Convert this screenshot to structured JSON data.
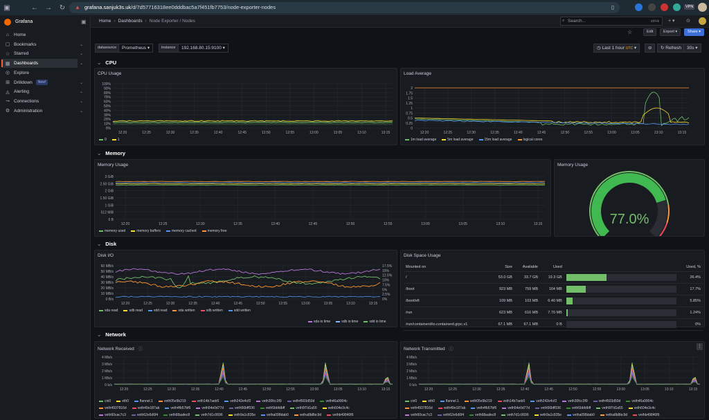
{
  "browser": {
    "url_domain": "grafana.sanjuk3s.uk",
    "url_path": "/d/7d57716318ee0dddbac5a7f451fb7753/node-exporter-nodes",
    "vpn": "VPN"
  },
  "sidebar": {
    "brand": "Grafana",
    "items": [
      {
        "label": "Home",
        "icon": "home-icon",
        "chevron": false
      },
      {
        "label": "Bookmarks",
        "icon": "bookmark-icon",
        "chevron": true
      },
      {
        "label": "Starred",
        "icon": "star-icon",
        "chevron": true
      },
      {
        "label": "Dashboards",
        "icon": "grid-icon",
        "chevron": true,
        "active": true
      },
      {
        "label": "Explore",
        "icon": "compass-icon",
        "chevron": false
      },
      {
        "label": "Drilldown",
        "icon": "drilldown-icon",
        "chevron": true,
        "badge": "New!"
      },
      {
        "label": "Alerting",
        "icon": "bell-icon",
        "chevron": true
      },
      {
        "label": "Connections",
        "icon": "plug-icon",
        "chevron": true
      },
      {
        "label": "Administration",
        "icon": "gear-icon",
        "chevron": true
      }
    ]
  },
  "breadcrumb": {
    "home": "Home",
    "dashboards": "Dashboards",
    "current": "Node Exporter / Nodes"
  },
  "search": {
    "placeholder": "Search...",
    "shortcut": "ctrl+k"
  },
  "toolbar": {
    "edit": "Edit",
    "export": "Export",
    "share": "Share"
  },
  "variables": {
    "datasource_label": "datasource",
    "datasource_value": "Prometheus",
    "instance_label": "instance",
    "instance_value": "192.168.80.15:9100"
  },
  "time": {
    "range": "Last 1 hour",
    "tz": "UTC",
    "refresh": "Refresh",
    "interval": "30s"
  },
  "rows": {
    "cpu": "CPU",
    "memory": "Memory",
    "disk": "Disk",
    "network": "Network"
  },
  "panels": {
    "cpu_usage": "CPU Usage",
    "load_average": "Load Average",
    "memory_usage": "Memory Usage",
    "memory_gauge": "Memory Usage",
    "disk_io": "Disk I/O",
    "disk_space": "Disk Space Usage",
    "net_rx": "Network Received",
    "net_tx": "Network Transmitted"
  },
  "time_ticks": [
    "12:20",
    "12:25",
    "12:30",
    "12:35",
    "12:40",
    "12:45",
    "12:50",
    "12:55",
    "13:00",
    "13:05",
    "13:10",
    "13:15"
  ],
  "cpu_legend": [
    {
      "name": "0",
      "color": "#73bf69"
    },
    {
      "name": "1",
      "color": "#fade2a"
    }
  ],
  "load_legend": [
    {
      "name": "1m load average",
      "color": "#73bf69"
    },
    {
      "name": "5m load average",
      "color": "#fade2a"
    },
    {
      "name": "15m load average",
      "color": "#5794f2"
    },
    {
      "name": "logical cores",
      "color": "#ff9830"
    }
  ],
  "mem_legend": [
    {
      "name": "memory used",
      "color": "#73bf69"
    },
    {
      "name": "memory buffers",
      "color": "#fade2a"
    },
    {
      "name": "memory cached",
      "color": "#5794f2"
    },
    {
      "name": "memory free",
      "color": "#ff9830"
    }
  ],
  "disk_legend": [
    {
      "name": "sda read",
      "color": "#73bf69"
    },
    {
      "name": "sdb read",
      "color": "#fade2a"
    },
    {
      "name": "sdd read",
      "color": "#5794f2"
    },
    {
      "name": "sda written",
      "color": "#ff9830"
    },
    {
      "name": "sdb written",
      "color": "#f2495c"
    },
    {
      "name": "sdd written",
      "color": "#5794f2"
    }
  ],
  "disk_legend2": [
    {
      "name": "sda io time",
      "color": "#b877d9"
    },
    {
      "name": "sdb io time",
      "color": "#8ab8ff"
    },
    {
      "name": "sdd io time",
      "color": "#73bf69"
    }
  ],
  "cpu_y": [
    "100%",
    "90%",
    "80%",
    "70%",
    "60%",
    "50%",
    "40%",
    "30%",
    "20%",
    "10%",
    "0%"
  ],
  "load_y": [
    "2",
    "1.75",
    "1.5",
    "1.25",
    "1",
    "0.75",
    "0.5",
    "0.25",
    "0"
  ],
  "mem_y": [
    "3 GiB",
    "2.50 GiB",
    "2 GiB",
    "1.50 GiB",
    "1 GiB",
    "512 MiB",
    "0 B"
  ],
  "disk_y": [
    "60 MB/s",
    "50 MB/s",
    "40 MB/s",
    "30 MB/s",
    "20 MB/s",
    "10 MB/s",
    "0 B/s"
  ],
  "disk_y2": [
    "17.5%",
    "15%",
    "12.5%",
    "10%",
    "7.5%",
    "5%",
    "2.5%",
    "0%"
  ],
  "net_y": [
    "4 Mb/s",
    "3 Mb/s",
    "2 Mb/s",
    "1 Mb/s",
    "0 b/s"
  ],
  "gauge": {
    "value": 77.0,
    "text": "77.0%"
  },
  "disk_table": {
    "headers": [
      "Mounted on",
      "Size",
      "Available",
      "Used",
      "",
      "Used, %"
    ],
    "rows": [
      {
        "mount": "/",
        "size": "53.0 GB",
        "avail": "33.7 GB",
        "used": "19.3 GB",
        "pct": "36.4%",
        "frac": 0.364
      },
      {
        "mount": "/boot",
        "size": "923 MB",
        "avail": "759 MB",
        "used": "164 MB",
        "pct": "17.7%",
        "frac": 0.177
      },
      {
        "mount": "/boot/efi",
        "size": "109 MB",
        "avail": "103 MB",
        "used": "6.40 MB",
        "pct": "5.85%",
        "frac": 0.0585
      },
      {
        "mount": "/run",
        "size": "623 MB",
        "avail": "616 MB",
        "used": "7.70 MB",
        "pct": "1.24%",
        "frac": 0.0124
      },
      {
        "mount": "/run/containerd/io.containerd.grpc.v1",
        "size": "67.1 MB",
        "avail": "67.1 MB",
        "used": "0 B",
        "pct": "0%",
        "frac": 0
      }
    ]
  },
  "net_legend1": [
    "cni0",
    "eth0",
    "flannel.1",
    "veth05e9b219",
    "veth14b7aeb5",
    "veth242e4cf2",
    "veth30fcc3f9",
    "veth4503d50d",
    "veth46a9904c"
  ],
  "net_legend2": [
    "veth4937816d",
    "veth49e187ab",
    "veth4fb57bf6",
    "veth54e0d77d",
    "veth56bff036",
    "veth5bbfdbff",
    "veth5f7d1a55",
    "veth604e3c4c"
  ],
  "net_legend3": [
    "veth60cac7c3",
    "veth62e6d6f4",
    "veth68aafec8",
    "veth7d1c0696",
    "veth9a1c835e",
    "vetha098dab0",
    "vetha8b8bc9d",
    "vethb49840f6"
  ],
  "net_colors": [
    "#73bf69",
    "#fade2a",
    "#5794f2",
    "#ff9830",
    "#f2495c",
    "#5794f2",
    "#b877d9",
    "#705da0",
    "#37872d"
  ]
}
